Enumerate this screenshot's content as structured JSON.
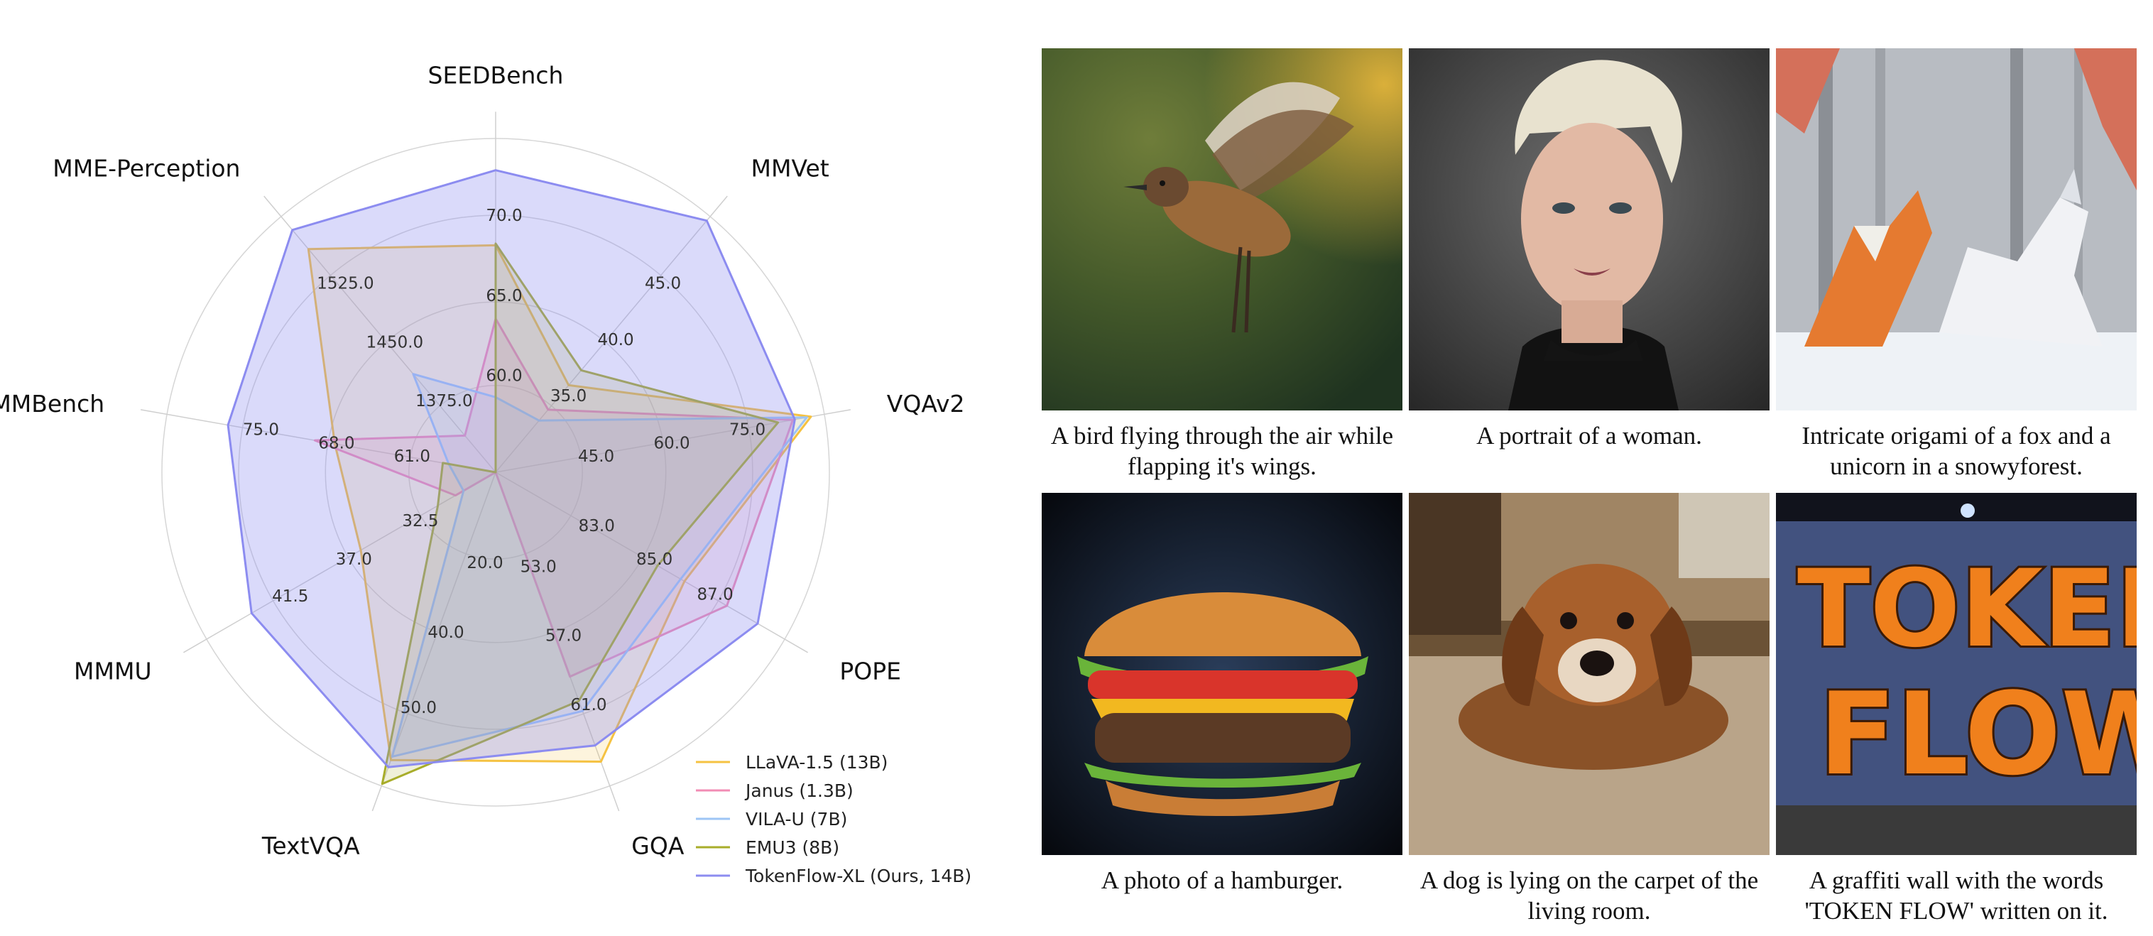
{
  "chart_data": {
    "type": "radar",
    "axes": [
      {
        "name": "SEEDBench",
        "ticks": [
          "60.0",
          "65.0",
          "70.0"
        ]
      },
      {
        "name": "MMVet",
        "ticks": [
          "35.0",
          "40.0",
          "45.0"
        ]
      },
      {
        "name": "VQAv2",
        "ticks": [
          "45.0",
          "60.0",
          "75.0"
        ]
      },
      {
        "name": "POPE",
        "ticks": [
          "83.0",
          "85.0",
          "87.0"
        ]
      },
      {
        "name": "GQA",
        "ticks": [
          "53.0",
          "57.0",
          "61.0"
        ]
      },
      {
        "name": "TextVQA",
        "ticks": [
          "40.0",
          "50.0"
        ]
      },
      {
        "name": "MMMU",
        "ticks": [
          "32.5",
          "37.0",
          "41.5"
        ]
      },
      {
        "name": "MMBench",
        "ticks": [
          "61.0",
          "68.0",
          "75.0"
        ]
      },
      {
        "name": "MME-Perception",
        "ticks": [
          "1375.0",
          "1450.0",
          "1525.0"
        ]
      }
    ],
    "center_tick": "20.0",
    "series": [
      {
        "name": "LLaVA-1.5 (13B)",
        "color": "#f5c242",
        "values": [
          68.1,
          36.1,
          80.0,
          85.9,
          63.3,
          61.3,
          36.4,
          67.7,
          1531.3
        ]
      },
      {
        "name": "Janus (1.3B)",
        "color": "#f28cb4",
        "values": [
          63.7,
          34.3,
          77.3,
          87.0,
          59.1,
          20.0,
          30.5,
          69.4,
          1338.0
        ]
      },
      {
        "name": "VILA-U (7B)",
        "color": "#9ec5f5",
        "values": [
          59.0,
          33.5,
          79.4,
          85.8,
          60.8,
          60.8,
          30.0,
          58.0,
          1401.8
        ]
      },
      {
        "name": "EMU3 (8B)",
        "color": "#a8ad2a",
        "values": [
          68.2,
          37.2,
          75.1,
          85.2,
          60.3,
          64.7,
          31.6,
          58.5,
          1243.8
        ]
      },
      {
        "name": "TokenFlow-XL (Ours, 14B)",
        "color": "#8c8cf0",
        "values": [
          72.6,
          48.2,
          77.6,
          87.8,
          62.5,
          62.3,
          43.2,
          76.8,
          1551.1
        ]
      }
    ]
  },
  "gallery": [
    {
      "caption": "A bird flying through the air while flapping it's wings."
    },
    {
      "caption": "A portrait of a woman."
    },
    {
      "caption": "Intricate origami of a fox and a unicorn in a snowyforest."
    },
    {
      "caption": "A photo of a hamburger."
    },
    {
      "caption": "A dog is lying on the carpet of the living room."
    },
    {
      "caption": "A graffiti wall with the words 'TOKEN FLOW' written on it."
    }
  ]
}
